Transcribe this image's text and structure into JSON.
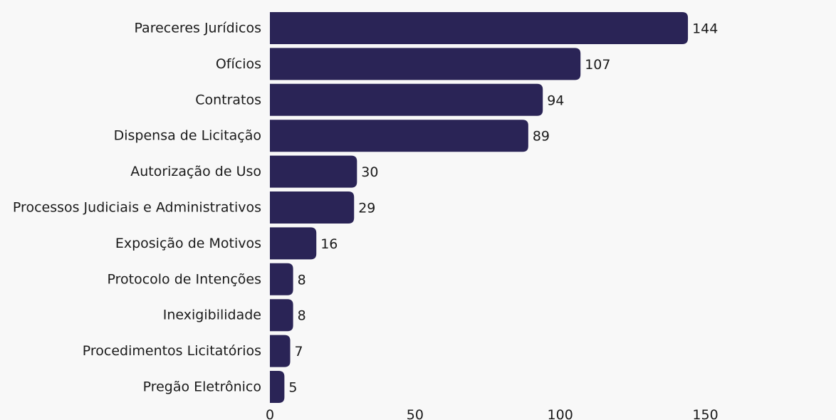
{
  "chart_data": {
    "type": "bar",
    "orientation": "horizontal",
    "categories": [
      "Pareceres Jurídicos",
      "Ofícios",
      "Contratos",
      "Dispensa de Licitação",
      "Autorização de Uso",
      "Processos Judiciais e Administrativos",
      "Exposição de Motivos",
      "Protocolo de Intenções",
      "Inexigibilidade",
      "Procedimentos Licitatórios",
      "Pregão Eletrônico"
    ],
    "values": [
      144,
      107,
      94,
      89,
      30,
      29,
      16,
      8,
      8,
      7,
      5
    ],
    "xlim": [
      0,
      195
    ],
    "xticks": [
      0,
      50,
      100,
      150
    ],
    "data_labels": true,
    "grid": false,
    "legend": "none"
  },
  "colors": {
    "background": "#f8f8f8",
    "bar": "#2a2456",
    "text": "#1a1a1a"
  }
}
